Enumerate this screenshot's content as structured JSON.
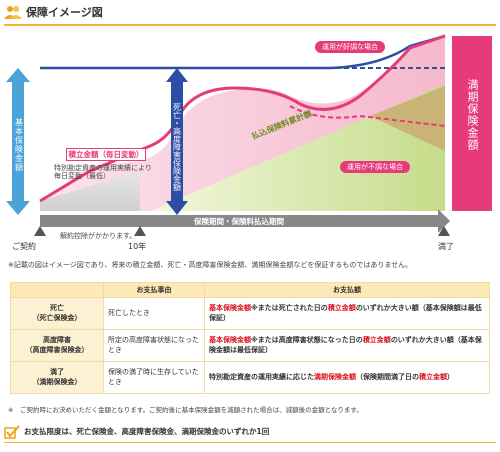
{
  "header": {
    "title": "保障イメージ図",
    "icon": "people-icon"
  },
  "chart": {
    "basic_label": "基本保険金額",
    "death_label": "死亡・高度障害保険金額",
    "maturity_label": "満期保険金額",
    "accumulated_label": "積立金額（毎日変動）",
    "accumulated_note_1": "特別勘定資産の運用実績により",
    "accumulated_note_2": "毎日変動（最低）",
    "premium_label": "払込保険料累計額",
    "good_label": "運用が好調な場合",
    "bad_label": "運用が不調な場合",
    "period_label": "保険期間・保険料払込期間",
    "deduction_label": "解約控除がかかります。",
    "contract_label": "ご契約",
    "year10_label": "10年",
    "maturity_end_label": "満了",
    "colors": {
      "pink": "#e63a7b",
      "navy": "#2d4ea5",
      "blue": "#4ba3d8",
      "green": "#b6d84a"
    }
  },
  "notes": {
    "chart_note": "※記載の図はイメージ図であり、将来の積立金額、死亡・高度障害保険金額、満期保険金額などを保証するものではありません。",
    "contract_note": "※　ご契約時にお決めいただく金額となります。ご契約後に基本保険金額を減額された場合は、減額後の金額となります。"
  },
  "table": {
    "headers": [
      "",
      "お支払事由",
      "お支払額"
    ],
    "rows": [
      {
        "name": "死亡",
        "sub": "（死亡保険金）",
        "event": "死亡したとき",
        "amount_1": "基本保険金額",
        "amount_2": "※または死亡された日の",
        "amount_3": "積立金額",
        "amount_4": "のいずれか大きい額（基本保険額は最低保証）"
      },
      {
        "name": "高度障害",
        "sub": "（高度障害保険金）",
        "event": "所定の高度障害状態になったとき",
        "amount_1": "基本保険金額",
        "amount_2": "※または高度障害状態になった日の",
        "amount_3": "積立金額",
        "amount_4": "のいずれか大きい額（基本保険金額は最低保証）"
      },
      {
        "name": "満了",
        "sub": "（満期保険金）",
        "event": "保険の満了時に生存していたとき",
        "amount_1": "特別勘定資産の運用実績に応じた",
        "amount_2": "満期保険金額",
        "amount_3": "（保険期間満了日の",
        "amount_4": "積立金額",
        "amount_5": "）"
      }
    ]
  },
  "footer": {
    "text": "お支払限度は、死亡保険金、高度障害保険金、満期保険金のいずれか1回"
  }
}
